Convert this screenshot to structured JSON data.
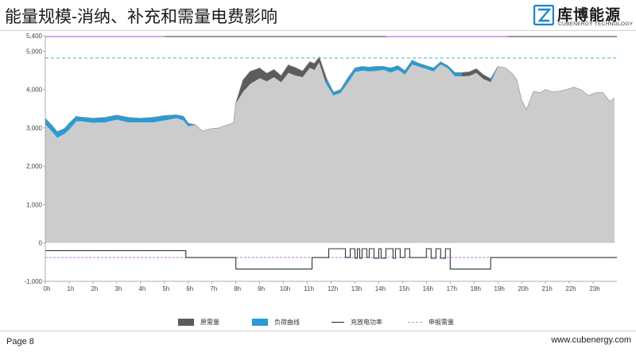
{
  "header": {
    "title": "能量规模-消纳、补充和需量电费影响",
    "logo_cn": "库博能源",
    "logo_en": "CUBENERGY TECHNOLOGY"
  },
  "footer": {
    "page_label": "Page 8",
    "website": "www.cubenergy.com"
  },
  "colors": {
    "original_demand": "#5c5c5c",
    "load_curve": "#2a9bd4",
    "area_fill": "#cccccc",
    "dispatch_power": "#333333",
    "declared_demand": "#c58ae0",
    "reference_line": "#3fb6c9",
    "logo_blue": "#1c86c8"
  },
  "chart_data": {
    "type": "area",
    "x_unit": "h",
    "xlim": [
      0,
      24
    ],
    "ylim": [
      -1000,
      5400
    ],
    "yticks": [
      -1000,
      0,
      1000,
      2000,
      3000,
      4000,
      5000,
      5400
    ],
    "ytick_labels": [
      "-1,000",
      "0",
      "1,000",
      "2,000",
      "3,000",
      "4,000",
      "5,000",
      "5,400"
    ],
    "xticks": [
      0,
      1,
      2,
      3,
      4,
      5,
      6,
      7,
      8,
      9,
      10,
      11,
      12,
      13,
      14,
      15,
      16,
      17,
      18,
      19,
      20,
      21,
      22,
      23
    ],
    "xtick_labels": [
      "0h",
      "1h",
      "2h",
      "3h",
      "4h",
      "5h",
      "6h",
      "7h",
      "8h",
      "9h",
      "10h",
      "11h",
      "12h",
      "13h",
      "14h",
      "15h",
      "16h",
      "17h",
      "18h",
      "19h",
      "20h",
      "21h",
      "22h",
      "23h"
    ],
    "grid": false,
    "legend_position": "bottom",
    "legend": [
      "原需量",
      "负荷曲线",
      "充放电功率",
      "申报需量"
    ],
    "reference_lines": [
      {
        "y": 4820,
        "style": "dashed",
        "color": "#3fb6c9"
      }
    ],
    "top_bars": [
      {
        "x0": 0,
        "x1": 5.0,
        "color": "#c58ae0"
      },
      {
        "x0": 5.0,
        "x1": 14.3,
        "color": "#777777"
      },
      {
        "x0": 14.3,
        "x1": 19.4,
        "color": "#c58ae0"
      },
      {
        "x0": 19.4,
        "x1": 24,
        "color": "#777777"
      }
    ],
    "series": [
      {
        "name": "原需量",
        "x": [
          0,
          0.3,
          0.5,
          0.8,
          1.0,
          1.3,
          1.5,
          2.0,
          2.5,
          3.0,
          3.5,
          4.0,
          4.5,
          5.0,
          5.5,
          5.8,
          6.0,
          6.3,
          6.6,
          7.0,
          7.3,
          7.6,
          7.9,
          8.0,
          8.3,
          8.6,
          9.0,
          9.3,
          9.6,
          9.9,
          10.2,
          10.5,
          10.8,
          11.1,
          11.3,
          11.5,
          11.8,
          12.1,
          12.4,
          12.7,
          13.0,
          13.3,
          13.6,
          13.9,
          14.2,
          14.5,
          14.8,
          15.1,
          15.4,
          15.7,
          16.0,
          16.3,
          16.6,
          16.9,
          17.2,
          17.5,
          17.8,
          18.1,
          18.4,
          18.7,
          19.0,
          19.3,
          19.6,
          19.8,
          20.0,
          20.2,
          20.5,
          20.8,
          21.0,
          21.3,
          21.6,
          21.9,
          22.2,
          22.5,
          22.8,
          23.1,
          23.4,
          23.7,
          23.9
        ],
        "y": [
          3250,
          3050,
          2900,
          2980,
          3120,
          3300,
          3280,
          3250,
          3270,
          3330,
          3270,
          3250,
          3270,
          3320,
          3340,
          3300,
          3120,
          3080,
          2920,
          2980,
          3000,
          3070,
          3130,
          3650,
          4250,
          4470,
          4560,
          4420,
          4520,
          4360,
          4640,
          4570,
          4480,
          4720,
          4680,
          4850,
          4300,
          3930,
          4000,
          4300,
          4560,
          4600,
          4580,
          4600,
          4600,
          4560,
          4620,
          4490,
          4760,
          4680,
          4620,
          4560,
          4720,
          4620,
          4440,
          4440,
          4460,
          4540,
          4380,
          4280,
          4600,
          4570,
          4420,
          4250,
          3720,
          3480,
          3950,
          3920,
          4000,
          3940,
          3960,
          4000,
          4060,
          3990,
          3840,
          3920,
          3930,
          3690,
          3780
        ]
      },
      {
        "name": "负荷曲线",
        "x": [
          0,
          0.3,
          0.5,
          0.8,
          1.0,
          1.3,
          1.5,
          2.0,
          2.5,
          3.0,
          3.5,
          4.0,
          4.5,
          5.0,
          5.5,
          5.8,
          6.0,
          6.3,
          6.6,
          7.0,
          7.3,
          7.6,
          7.9,
          8.0,
          8.3,
          8.6,
          9.0,
          9.3,
          9.6,
          9.9,
          10.2,
          10.5,
          10.8,
          11.1,
          11.3,
          11.5,
          11.8,
          12.1,
          12.4,
          12.7,
          13.0,
          13.3,
          13.6,
          13.9,
          14.2,
          14.5,
          14.8,
          15.1,
          15.4,
          15.7,
          16.0,
          16.3,
          16.6,
          16.9,
          17.2,
          17.5,
          17.8,
          18.1,
          18.4,
          18.7,
          19.0,
          19.3,
          19.6,
          19.8,
          20.0,
          20.2,
          20.5,
          20.8,
          21.0,
          21.3,
          21.6,
          21.9,
          22.2,
          22.5,
          22.8,
          23.1,
          23.4,
          23.7,
          23.9
        ],
        "y": [
          3100,
          2900,
          2750,
          2850,
          2960,
          3180,
          3180,
          3140,
          3150,
          3220,
          3150,
          3150,
          3150,
          3200,
          3260,
          3200,
          3050,
          3080,
          2920,
          2980,
          3000,
          3070,
          3130,
          3650,
          3950,
          4150,
          4300,
          4220,
          4330,
          4200,
          4440,
          4370,
          4330,
          4570,
          4520,
          4720,
          4150,
          3850,
          3920,
          4180,
          4460,
          4500,
          4480,
          4490,
          4520,
          4450,
          4520,
          4400,
          4660,
          4600,
          4540,
          4480,
          4660,
          4560,
          4350,
          4350,
          4360,
          4440,
          4280,
          4200,
          4600,
          4570,
          4420,
          4250,
          3720,
          3480,
          3950,
          3920,
          4000,
          3940,
          3960,
          4000,
          4060,
          3990,
          3840,
          3920,
          3930,
          3690,
          3780
        ]
      },
      {
        "name": "充放电功率",
        "x": [
          0,
          5.9,
          5.9,
          8.0,
          8.0,
          11.2,
          11.2,
          11.9,
          11.9,
          12.6,
          12.6,
          12.8,
          12.8,
          13.0,
          13.0,
          13.1,
          13.1,
          13.2,
          13.2,
          13.3,
          13.3,
          13.5,
          13.5,
          13.6,
          13.6,
          13.8,
          13.8,
          14.0,
          14.0,
          14.1,
          14.1,
          14.3,
          14.3,
          14.6,
          14.6,
          14.7,
          14.7,
          14.9,
          14.9,
          15.1,
          15.1,
          15.3,
          15.3,
          15.5,
          15.5,
          16.0,
          16.0,
          16.2,
          16.2,
          16.4,
          16.4,
          16.6,
          16.6,
          16.8,
          16.8,
          17.0,
          17.0,
          18.7,
          18.7,
          24
        ],
        "y": [
          -200,
          -200,
          -380,
          -380,
          -680,
          -680,
          -380,
          -380,
          -150,
          -150,
          -380,
          -380,
          -150,
          -150,
          -400,
          -400,
          -150,
          -150,
          -400,
          -400,
          -150,
          -150,
          -380,
          -380,
          -150,
          -150,
          -400,
          -400,
          -150,
          -150,
          -400,
          -400,
          -150,
          -150,
          -400,
          -400,
          -150,
          -150,
          -380,
          -380,
          -150,
          -150,
          -380,
          -380,
          -380,
          -380,
          -150,
          -150,
          -400,
          -400,
          -150,
          -150,
          -400,
          -400,
          -150,
          -150,
          -680,
          -680,
          -380,
          -380
        ]
      },
      {
        "name": "申报需量",
        "x": [
          0,
          24
        ],
        "y": [
          -380,
          -380
        ]
      }
    ]
  }
}
